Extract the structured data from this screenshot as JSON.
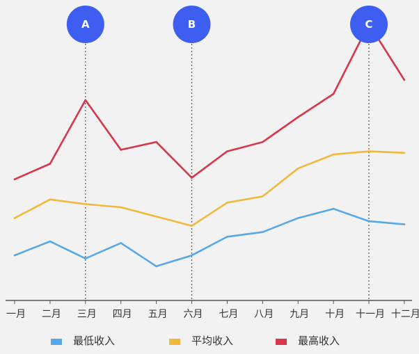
{
  "colors": {
    "background": "#f2f2f2",
    "axis": "#555555",
    "marker_fill": "#3d5ef0",
    "marker_line": "#555555"
  },
  "chart_data": {
    "type": "line",
    "categories": [
      "一月",
      "二月",
      "三月",
      "四月",
      "五月",
      "六月",
      "七月",
      "八月",
      "九月",
      "十月",
      "十一月",
      "十二月"
    ],
    "ylim": [
      0,
      18
    ],
    "grid": false,
    "legend_position": "bottom",
    "series": [
      {
        "name": "最低收入",
        "color": "#57a8e8",
        "values": [
          2.9,
          3.8,
          2.7,
          3.7,
          2.2,
          2.9,
          4.1,
          4.4,
          5.3,
          5.9,
          5.1,
          4.9
        ]
      },
      {
        "name": "平均收入",
        "color": "#f0b93c",
        "values": [
          5.3,
          6.5,
          6.2,
          6.0,
          5.4,
          4.8,
          6.3,
          6.7,
          8.5,
          9.4,
          9.6,
          9.5
        ]
      },
      {
        "name": "最高收入",
        "color": "#d9364a",
        "values": [
          7.8,
          8.8,
          12.9,
          9.7,
          10.2,
          7.9,
          9.6,
          10.2,
          11.8,
          13.3,
          17.8,
          14.2
        ]
      }
    ],
    "annotations": [
      {
        "label": "A",
        "category": "三月"
      },
      {
        "label": "B",
        "category": "六月"
      },
      {
        "label": "C",
        "category": "十一月"
      }
    ]
  }
}
